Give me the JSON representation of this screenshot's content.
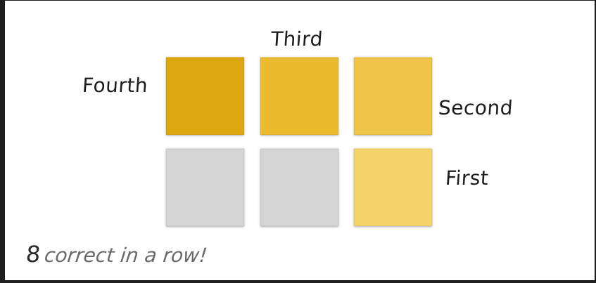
{
  "board": {
    "labels": {
      "fourth": "Fourth",
      "third": "Third",
      "second": "Second",
      "first": "First"
    },
    "tiles": [
      {
        "row": 1,
        "col": 1,
        "color": "#DDA70F",
        "state": "filled"
      },
      {
        "row": 1,
        "col": 2,
        "color": "#EBBB2E",
        "state": "filled"
      },
      {
        "row": 1,
        "col": 3,
        "color": "#F0C64A",
        "state": "filled"
      },
      {
        "row": 2,
        "col": 1,
        "color": "#D5D5D5",
        "state": "empty"
      },
      {
        "row": 2,
        "col": 2,
        "color": "#D5D5D5",
        "state": "empty"
      },
      {
        "row": 2,
        "col": 3,
        "color": "#F4D36B",
        "state": "filled"
      }
    ]
  },
  "streak": {
    "count": "8",
    "text": "correct in a row!"
  }
}
